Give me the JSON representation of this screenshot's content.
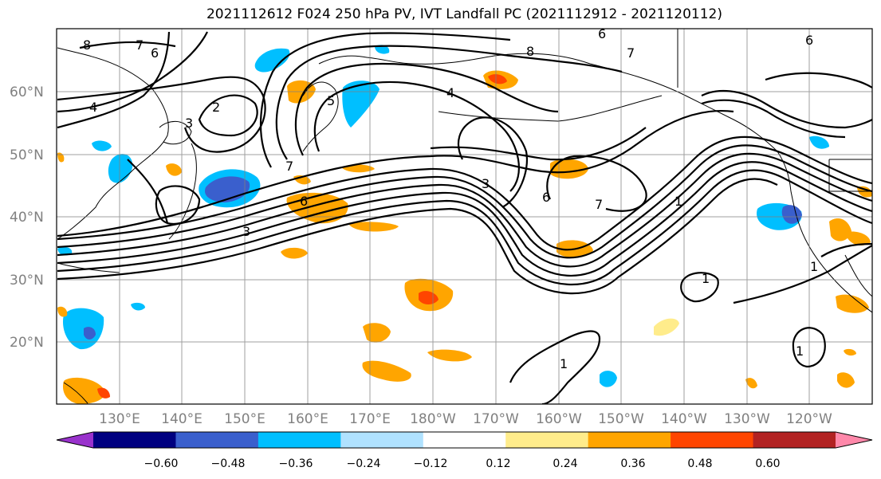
{
  "title": "2021112612 F024 250 hPa PV, IVT Landfall PC (2021112912 - 2021120112)",
  "lat_labels": [
    "60°N",
    "50°N",
    "40°N",
    "30°N",
    "20°N"
  ],
  "lon_labels": [
    "130°E",
    "140°E",
    "150°E",
    "160°E",
    "170°E",
    "180°W",
    "170°W",
    "160°W",
    "150°W",
    "140°W",
    "130°W",
    "120°W"
  ],
  "colorbar": {
    "colors": [
      "#9932cc",
      "#000080",
      "#3a5fcd",
      "#00bfff",
      "#b0e2ff",
      "#ffffff",
      "#ffec8b",
      "#ffa500",
      "#ff4500",
      "#b22222",
      "#ff88aa"
    ],
    "ticks": [
      "−0.60",
      "−0.48",
      "−0.36",
      "−0.24",
      "−0.12",
      "0.12",
      "0.24",
      "0.36",
      "0.48",
      "0.60"
    ]
  },
  "contour_labels": [
    "8",
    "7",
    "6",
    "4",
    "2",
    "3",
    "6",
    "8",
    "7",
    "6",
    "6",
    "3",
    "7",
    "6",
    "1",
    "1",
    "1",
    "1",
    "1",
    "3",
    "4",
    "7",
    "5"
  ]
}
